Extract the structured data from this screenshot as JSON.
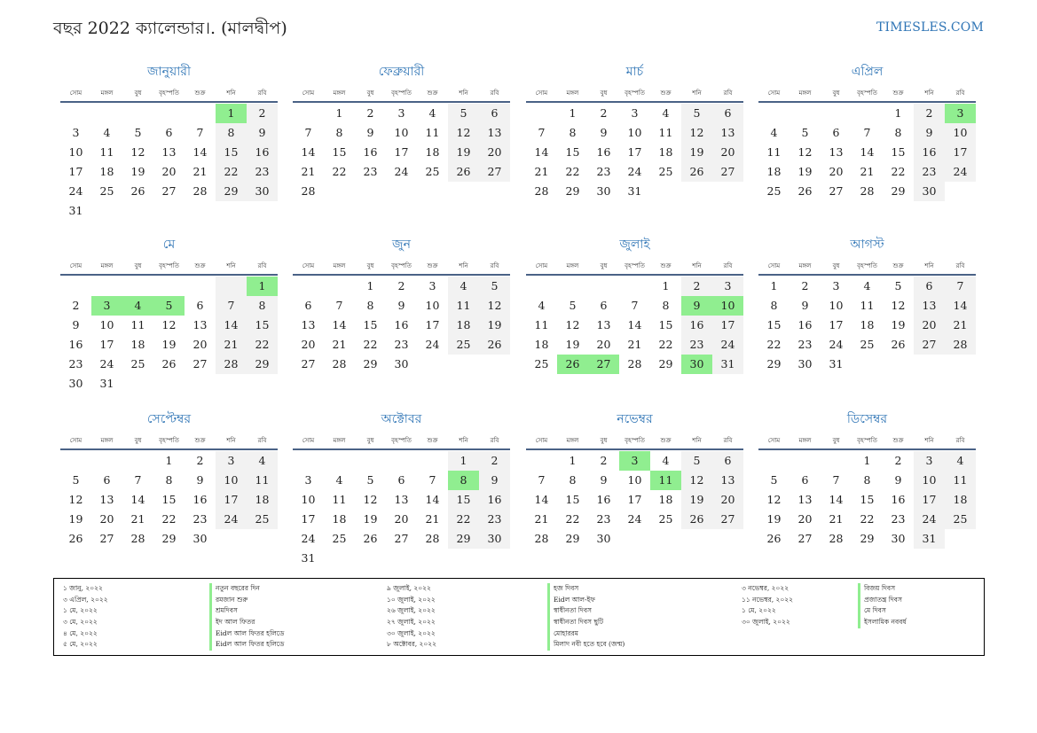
{
  "header": {
    "title": "বছর 2022 ক্যালেন্ডার।. (মালদ্বীপ)",
    "site": "TIMESLES.COM"
  },
  "colors": {
    "accent": "#2e74b5",
    "holiday": "#90ee90",
    "weekend": "#f2f2f2",
    "rule": "#4a6286"
  },
  "weekdays": [
    "সোম",
    "মঙ্গল",
    "বুধ",
    "বৃহস্পতি",
    "শুক্র",
    "শনি",
    "রবি"
  ],
  "months": [
    {
      "name": "জানুয়ারী",
      "offset": 5,
      "days": 31,
      "holidays": [
        1
      ]
    },
    {
      "name": "ফেব্রুয়ারী",
      "offset": 1,
      "days": 28,
      "holidays": []
    },
    {
      "name": "মার্চ",
      "offset": 1,
      "days": 31,
      "holidays": []
    },
    {
      "name": "এপ্রিল",
      "offset": 4,
      "days": 30,
      "holidays": [
        3
      ]
    },
    {
      "name": "মে",
      "offset": 6,
      "days": 31,
      "holidays": [
        1,
        3,
        4,
        5
      ]
    },
    {
      "name": "জুন",
      "offset": 2,
      "days": 30,
      "holidays": []
    },
    {
      "name": "জুলাই",
      "offset": 4,
      "days": 31,
      "holidays": [
        9,
        10,
        26,
        27,
        30
      ]
    },
    {
      "name": "আগস্ট",
      "offset": 0,
      "days": 31,
      "holidays": []
    },
    {
      "name": "সেপ্টেম্বর",
      "offset": 3,
      "days": 30,
      "holidays": []
    },
    {
      "name": "অক্টোবর",
      "offset": 5,
      "days": 31,
      "holidays": [
        8
      ]
    },
    {
      "name": "নভেম্বর",
      "offset": 1,
      "days": 30,
      "holidays": [
        3,
        11
      ]
    },
    {
      "name": "ডিসেম্বর",
      "offset": 3,
      "days": 31,
      "holidays": []
    }
  ],
  "holidays_list": {
    "col1_dates": [
      "১ জানু, ২০২২",
      "৩ এপ্রিল, ২০২২",
      "১ মে, ২০২২",
      "৩ মে, ২০২২",
      "৪ মে, ২০২২",
      "৫ মে, ২০২২"
    ],
    "col1_names": [
      "নতুন বছরের দিন",
      "রমজান শুরু",
      "শ্রমদিবস",
      "ইদ আল ফিতর",
      "Eidল আল ফিতর হলিডে",
      "Eidল আল ফিতর হলিডে"
    ],
    "col2_dates": [
      "৯ জুলাই, ২০২২",
      "১০ জুলাই, ২০২২",
      "২৬ জুলাই, ২০২২",
      "২৭ জুলাই, ২০২২",
      "৩০ জুলাই, ২০২২",
      "৮ অক্টোবর, ২০২২"
    ],
    "col2_names": [
      "হজ দিবস",
      "Eidল আল-ইফ",
      "স্বাধীনতা দিবস",
      "স্বাধীনতা দিবস ছুটি",
      "মোহাররম",
      "মিলাদ নবী হতে হবে (জন্ম)"
    ],
    "col3_dates": [
      "৩ নভেম্বর, ২০২২",
      "১১ নভেম্বর, ২০২২",
      "১ মে, ২০২২",
      "৩০ জুলাই, ২০২২"
    ],
    "col3_names": [
      "বিজয় দিবস",
      "প্রজাতন্ত্র দিবস",
      "মে দিবস",
      "ইসলামিক নববর্ষ"
    ]
  }
}
